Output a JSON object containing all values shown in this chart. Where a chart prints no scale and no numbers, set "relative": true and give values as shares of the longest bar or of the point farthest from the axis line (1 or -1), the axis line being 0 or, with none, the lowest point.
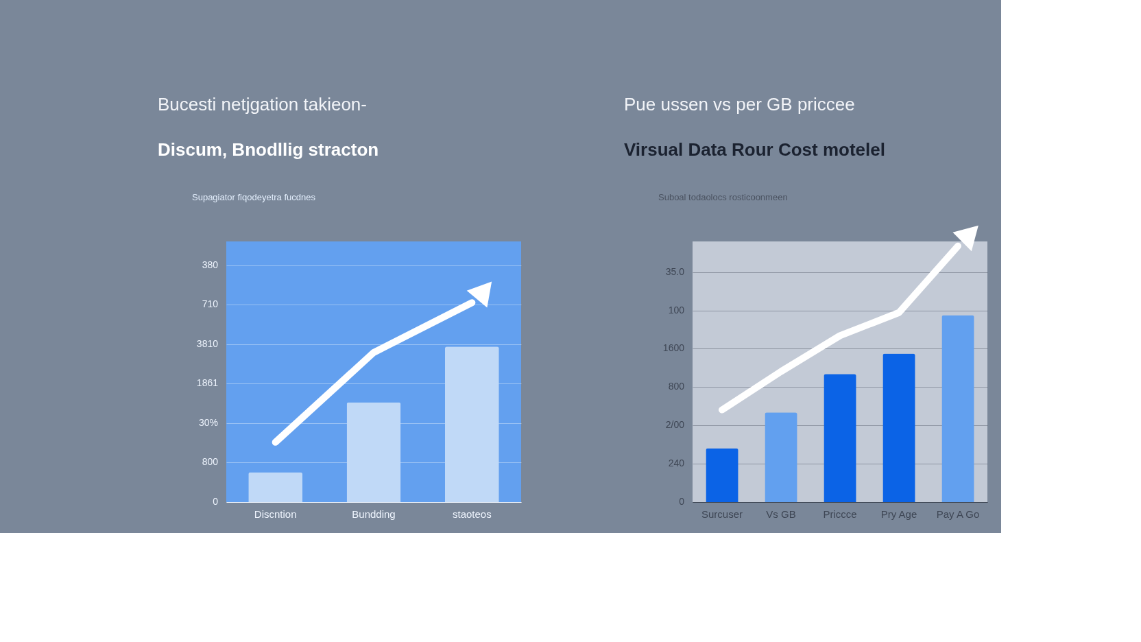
{
  "chart_data": [
    {
      "type": "bar",
      "title": "Bucesti netjgation takieon-",
      "subtitle": "Discum, Bnodllig stracton",
      "annotations": [
        "Supagiator fiqodeyetra fucdnes",
        "0",
        "800",
        "30%",
        "1861",
        "3810",
        "710",
        "380"
      ],
      "categories": [
        "Discntion",
        "Bundding",
        "staoteos"
      ],
      "values": [
        0.15,
        0.5,
        0.78
      ],
      "colors": [
        "#c0d9f7",
        "#c0d9f7",
        "#c0d9f7"
      ],
      "series": [
        {
          "type": "line",
          "color": "#ffffff",
          "values": [
            0.3,
            0.75,
            1.0
          ]
        }
      ],
      "relative": true,
      "grid": "y"
    },
    {
      "type": "bar",
      "title": "Pue ussen vs per GB priccee",
      "subtitle": "Virsual Data Rour Cost motelel",
      "annotations": [
        "Suboal todaolocs rosticoonmeen",
        "0",
        "240",
        "2/00",
        "800",
        "1600",
        "100",
        "35.0"
      ],
      "categories": [
        "Surcuser",
        "Vs GB",
        "Priccce",
        "Pry Age",
        "Pay A Go"
      ],
      "values": [
        0.21,
        0.35,
        0.5,
        0.58,
        0.73
      ],
      "colors": [
        "#0b63e6",
        "#62a0ef",
        "#0b63e6",
        "#0b63e6",
        "#62a0ef"
      ],
      "series": [
        {
          "type": "line",
          "color": "#ffffff",
          "values": [
            0.36,
            0.51,
            0.65,
            0.74,
            1.0
          ]
        }
      ],
      "relative": true,
      "grid": "y"
    }
  ]
}
